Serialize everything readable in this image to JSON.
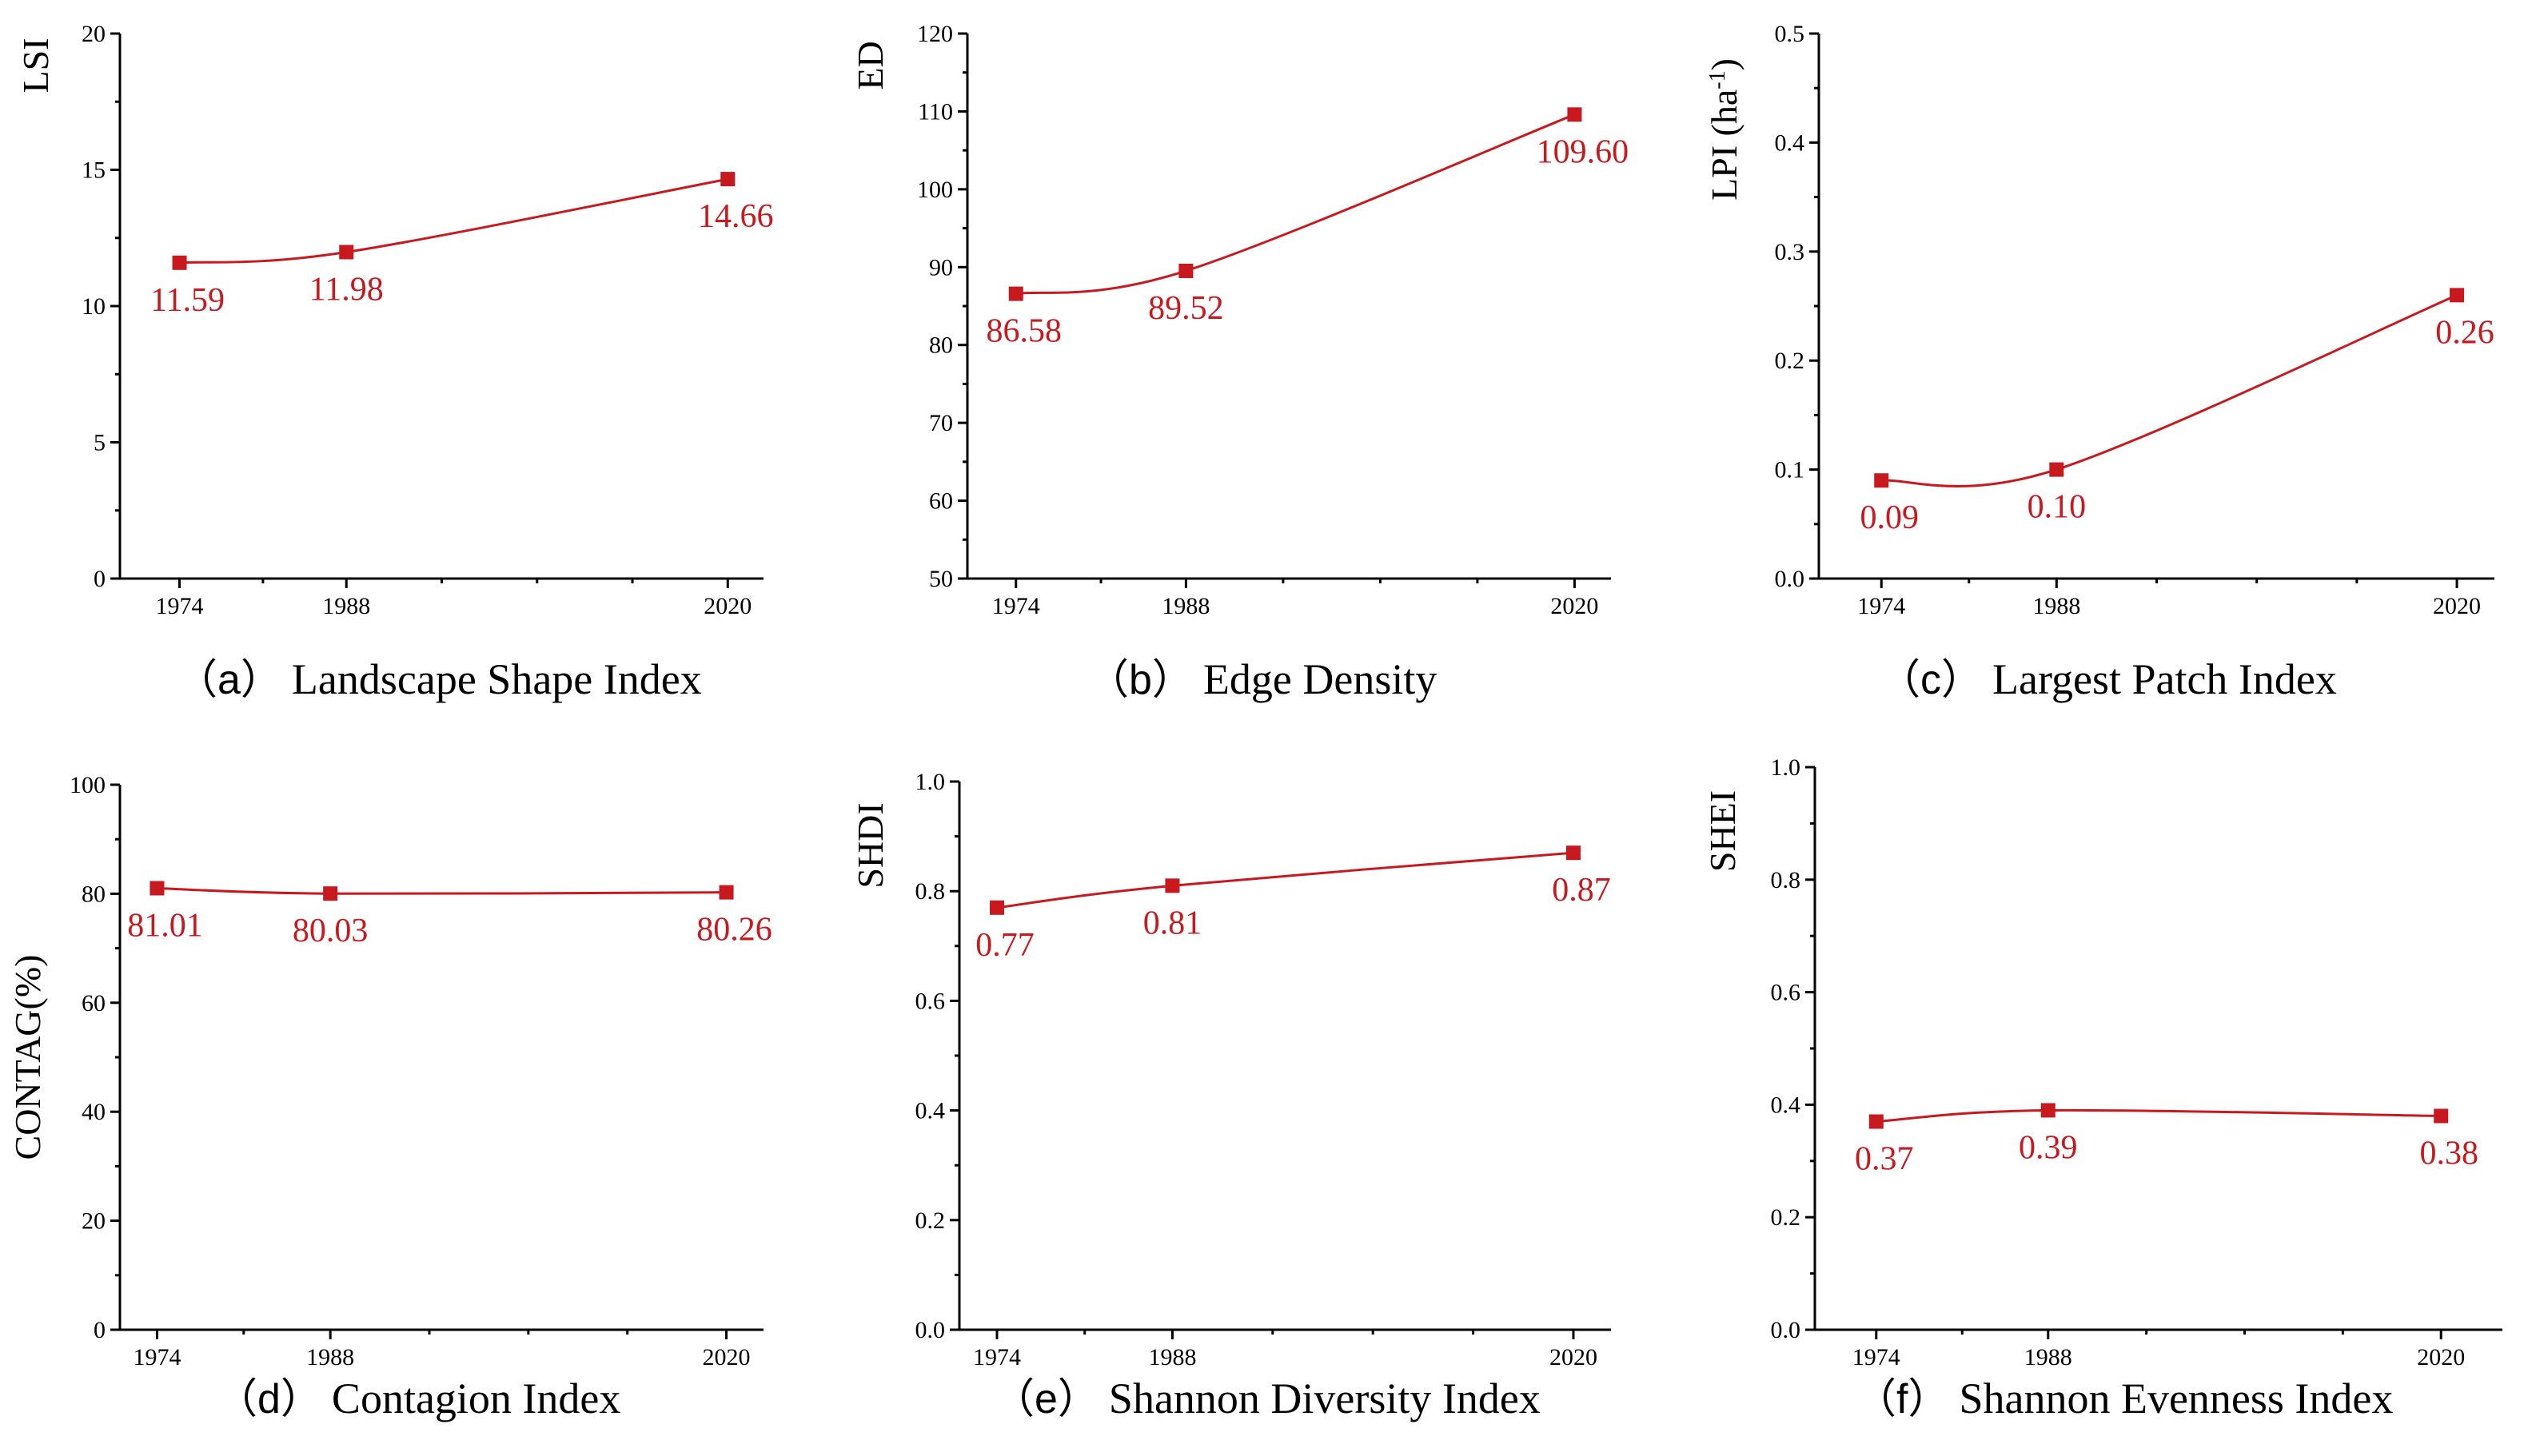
{
  "colors": {
    "series": "#c8191f",
    "axis": "#000000",
    "background": "#ffffff"
  },
  "chart_data": [
    {
      "id": "a",
      "type": "line",
      "caption_letter": "（a）",
      "caption": "Landscape Shape Index",
      "ylabel": "LSI",
      "ylabel_sup": "",
      "ylabel_tail": "",
      "x": [
        1974,
        1988,
        2020
      ],
      "xlim": [
        1969,
        2023
      ],
      "xticks": [
        "1974",
        "1988",
        "2020"
      ],
      "values": [
        11.59,
        11.98,
        14.66
      ],
      "data_labels": [
        "11.59",
        "11.98",
        "14.66"
      ],
      "ylim": [
        0,
        20
      ],
      "yticks": [
        "0",
        "5",
        "10",
        "15",
        "20"
      ]
    },
    {
      "id": "b",
      "type": "line",
      "caption_letter": "（b）",
      "caption": "Edge Density",
      "ylabel": "ED",
      "ylabel_sup": "",
      "ylabel_tail": "",
      "x": [
        1974,
        1988,
        2020
      ],
      "xlim": [
        1970,
        2023
      ],
      "xticks": [
        "1974",
        "1988",
        "2020"
      ],
      "values": [
        86.58,
        89.52,
        109.6
      ],
      "data_labels": [
        "86.58",
        "89.52",
        "109.60"
      ],
      "ylim": [
        50,
        120
      ],
      "yticks": [
        "50",
        "60",
        "70",
        "80",
        "90",
        "100",
        "110",
        "120"
      ]
    },
    {
      "id": "c",
      "type": "line",
      "caption_letter": "（c）",
      "caption": "Largest Patch Index",
      "ylabel": "LPI (ha",
      "ylabel_sup": "-1",
      "ylabel_tail": ")",
      "x": [
        1974,
        1988,
        2020
      ],
      "xlim": [
        1969,
        2023
      ],
      "xticks": [
        "1974",
        "1988",
        "2020"
      ],
      "values": [
        0.09,
        0.1,
        0.26
      ],
      "data_labels": [
        "0.09",
        "0.10",
        "0.26"
      ],
      "ylim": [
        0,
        0.5
      ],
      "yticks": [
        "0.0",
        "0.1",
        "0.2",
        "0.3",
        "0.4",
        "0.5"
      ]
    },
    {
      "id": "d",
      "type": "line",
      "caption_letter": "（d）",
      "caption": "Contagion Index",
      "ylabel": "CONTAG(%)",
      "ylabel_sup": "",
      "ylabel_tail": "",
      "x": [
        1974,
        1988,
        2020
      ],
      "xlim": [
        1971,
        2023
      ],
      "xticks": [
        "1974",
        "1988",
        "2020"
      ],
      "values": [
        81.01,
        80.03,
        80.26
      ],
      "data_labels": [
        "81.01",
        "80.03",
        "80.26"
      ],
      "ylim": [
        0,
        100
      ],
      "yticks": [
        "0",
        "20",
        "40",
        "60",
        "80",
        "100"
      ]
    },
    {
      "id": "e",
      "type": "line",
      "caption_letter": "（e）",
      "caption": "Shannon Diversity Index",
      "ylabel": "SHDI",
      "ylabel_sup": "",
      "ylabel_tail": "",
      "x": [
        1974,
        1988,
        2020
      ],
      "xlim": [
        1971,
        2023
      ],
      "xticks": [
        "1974",
        "1988",
        "2020"
      ],
      "values": [
        0.77,
        0.81,
        0.87
      ],
      "data_labels": [
        "0.77",
        "0.81",
        "0.87"
      ],
      "ylim": [
        0,
        1
      ],
      "yticks": [
        "0.0",
        "0.2",
        "0.4",
        "0.6",
        "0.8",
        "1.0"
      ]
    },
    {
      "id": "f",
      "type": "line",
      "caption_letter": "（f）",
      "caption": "Shannon Evenness Index",
      "ylabel": "SHEI",
      "ylabel_sup": "",
      "ylabel_tail": "",
      "x": [
        1974,
        1988,
        2020
      ],
      "xlim": [
        1969,
        2025
      ],
      "xticks": [
        "1974",
        "1988",
        "2020"
      ],
      "values": [
        0.37,
        0.39,
        0.38
      ],
      "data_labels": [
        "0.37",
        "0.39",
        "0.38"
      ],
      "ylim": [
        0,
        1
      ],
      "yticks": [
        "0.0",
        "0.2",
        "0.4",
        "0.6",
        "0.8",
        "1.0"
      ]
    }
  ]
}
